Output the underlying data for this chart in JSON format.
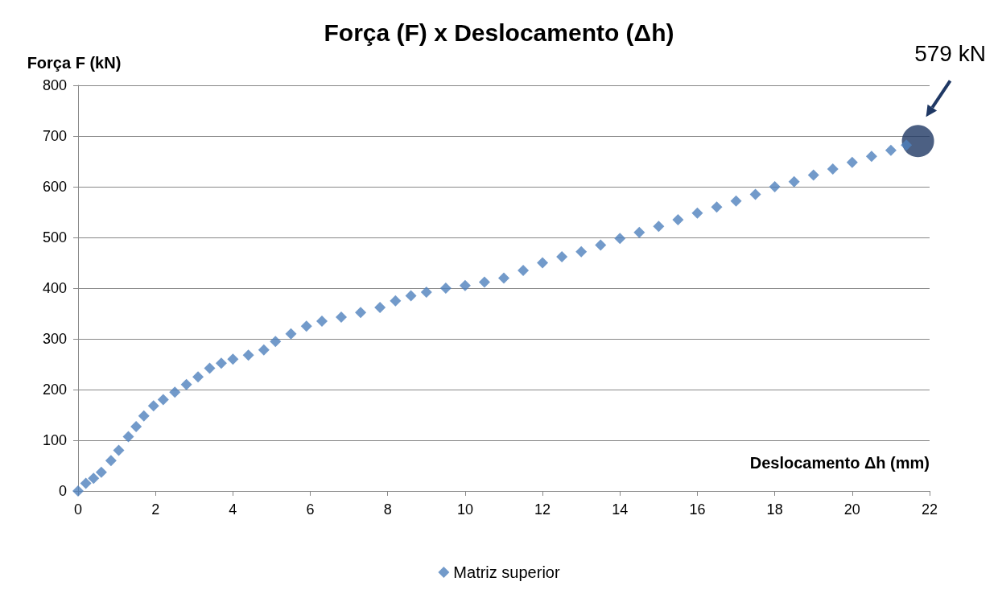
{
  "chart_data": {
    "type": "scatter",
    "title": "Força (F) x Deslocamento (Δh)",
    "xlabel": "Deslocamento Δh (mm)",
    "ylabel": "Força F (kN)",
    "series": [
      {
        "name": "Matriz superior",
        "color": "#4f81bd",
        "marker": "diamond",
        "x": [
          0,
          0.2,
          0.4,
          0.6,
          0.85,
          1.05,
          1.3,
          1.5,
          1.7,
          1.95,
          2.2,
          2.5,
          2.8,
          3.1,
          3.4,
          3.7,
          4.0,
          4.4,
          4.8,
          5.1,
          5.5,
          5.9,
          6.3,
          6.8,
          7.3,
          7.8,
          8.2,
          8.6,
          9.0,
          9.5,
          10.0,
          10.5,
          11.0,
          11.5,
          12.0,
          12.5,
          13.0,
          13.5,
          14.0,
          14.5,
          15.0,
          15.5,
          16.0,
          16.5,
          17.0,
          17.5,
          18.0,
          18.5,
          19.0,
          19.5,
          20.0,
          20.5,
          21.0,
          21.4
        ],
        "values": [
          0,
          15,
          25,
          37,
          60,
          80,
          107,
          127,
          148,
          168,
          180,
          195,
          210,
          225,
          242,
          252,
          260,
          268,
          278,
          295,
          310,
          325,
          335,
          343,
          352,
          362,
          375,
          385,
          392,
          400,
          405,
          412,
          420,
          435,
          450,
          462,
          472,
          485,
          498,
          510,
          522,
          535,
          548,
          560,
          572,
          585,
          600,
          610,
          623,
          635,
          648,
          660,
          672,
          682
        ]
      },
      {
        "color": "#1f3864",
        "marker": "circle",
        "x": [
          21.7
        ],
        "values": [
          690
        ]
      }
    ],
    "annotations": [
      "579 kN"
    ],
    "xlim": [
      0,
      22
    ],
    "xticks": [
      0,
      2,
      4,
      6,
      8,
      10,
      12,
      14,
      16,
      18,
      20,
      22
    ],
    "ylim": [
      0,
      800
    ],
    "yticks": [
      0,
      100,
      200,
      300,
      400,
      500,
      600,
      700,
      800
    ],
    "grid": "y",
    "legend": "bottom"
  }
}
